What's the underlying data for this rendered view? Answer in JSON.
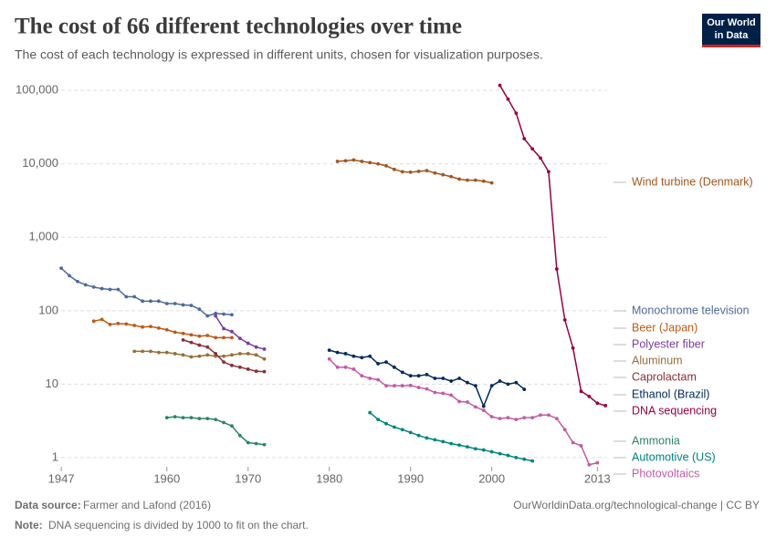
{
  "chart_data": {
    "type": "line",
    "title": "The cost of 66 different technologies over time",
    "subtitle": "The cost of each technology is expressed in different units, chosen for visualization purposes.",
    "logo": [
      "Our World",
      "in Data"
    ],
    "source_label": "Data source:",
    "source": "Farmer and Lafond (2016)",
    "url": "OurWorldinData.org/technological-change | CC BY",
    "note_label": "Note:",
    "note": "DNA sequencing is divided by 1000 to fit on the chart.",
    "log_scale": true,
    "grid": true,
    "xlim": [
      1946.2,
      2014.2
    ],
    "xticks": [
      1947,
      1960,
      1970,
      1980,
      1990,
      2000,
      2013
    ],
    "ylim": [
      0.75,
      130000
    ],
    "yticks": [
      1,
      10,
      100,
      {
        "value": 1000,
        "label": "1,000"
      },
      {
        "value": 10000,
        "label": "10,000"
      },
      {
        "value": 100000,
        "label": "100,000"
      }
    ],
    "series": [
      {
        "name": "Wind turbine (Denmark)",
        "color": "#A2561F",
        "x": [
          1981,
          1982,
          1983,
          1984,
          1985,
          1986,
          1987,
          1988,
          1989,
          1990,
          1991,
          1992,
          1993,
          1994,
          1995,
          1996,
          1997,
          1998,
          1999,
          2000
        ],
        "values": [
          10800,
          11000,
          11300,
          10800,
          10400,
          10000,
          9400,
          8400,
          7800,
          7700,
          7900,
          8100,
          7500,
          7100,
          6700,
          6200,
          6000,
          6000,
          5800,
          5500
        ]
      },
      {
        "name": "Monochrome television",
        "color": "#4C6A9C",
        "x": [
          1947,
          1948,
          1949,
          1950,
          1951,
          1952,
          1953,
          1954,
          1955,
          1956,
          1957,
          1958,
          1959,
          1960,
          1961,
          1962,
          1963,
          1964,
          1965,
          1966,
          1967,
          1968
        ],
        "values": [
          380,
          300,
          250,
          225,
          210,
          200,
          195,
          195,
          155,
          155,
          135,
          135,
          135,
          125,
          125,
          120,
          118,
          105,
          85,
          92,
          90,
          88
        ]
      },
      {
        "name": "Beer (Japan)",
        "color": "#BE5915",
        "x": [
          1951,
          1952,
          1953,
          1954,
          1955,
          1956,
          1957,
          1958,
          1959,
          1960,
          1961,
          1962,
          1963,
          1964,
          1965,
          1966,
          1967,
          1968
        ],
        "values": [
          72,
          76,
          65,
          67,
          66,
          63,
          60,
          61,
          58,
          55,
          51,
          49,
          47,
          45,
          46,
          43,
          43,
          43
        ]
      },
      {
        "name": "Polyester fiber",
        "color": "#7B3C9E",
        "x": [
          1966,
          1967,
          1968,
          1969,
          1970,
          1971,
          1972
        ],
        "values": [
          85,
          57,
          52,
          42,
          36,
          32,
          30
        ]
      },
      {
        "name": "Aluminum",
        "color": "#996D39",
        "x": [
          1956,
          1957,
          1958,
          1959,
          1960,
          1961,
          1962,
          1963,
          1964,
          1965,
          1966,
          1967,
          1968,
          1969,
          1970,
          1971,
          1972
        ],
        "values": [
          28,
          28,
          28,
          27,
          27,
          26,
          25,
          23.5,
          24,
          25,
          24,
          24,
          25,
          26,
          26,
          25,
          22
        ]
      },
      {
        "name": "Caprolactam",
        "color": "#883039",
        "x": [
          1962,
          1963,
          1964,
          1965,
          1966,
          1967,
          1968,
          1969,
          1970,
          1971,
          1972
        ],
        "values": [
          40,
          37,
          34,
          32,
          26,
          20,
          18,
          17,
          16,
          15,
          14.8
        ]
      },
      {
        "name": "Ethanol (Brazil)",
        "color": "#00295B",
        "x": [
          1980,
          1981,
          1982,
          1983,
          1984,
          1985,
          1986,
          1987,
          1988,
          1989,
          1990,
          1991,
          1992,
          1993,
          1994,
          1995,
          1996,
          1997,
          1998,
          1999,
          2000,
          2001,
          2002,
          2003,
          2004
        ],
        "values": [
          29,
          27,
          26,
          24,
          23,
          24,
          19,
          20,
          17,
          14.5,
          13,
          13,
          13.5,
          12,
          12,
          11,
          12,
          10.5,
          9.5,
          5,
          9.5,
          11,
          10,
          10.5,
          8.5
        ]
      },
      {
        "name": "DNA sequencing",
        "color": "#970046",
        "x": [
          2001,
          2002,
          2003,
          2004,
          2005,
          2006,
          2007,
          2008,
          2009,
          2010,
          2011,
          2012,
          2013,
          2014
        ],
        "values": [
          117000,
          76000,
          49000,
          22000,
          16000,
          12000,
          7800,
          370,
          75,
          31,
          8,
          6.8,
          5.5,
          5.1
        ]
      },
      {
        "name": "Ammonia",
        "color": "#2C8465",
        "x": [
          1960,
          1961,
          1962,
          1963,
          1964,
          1965,
          1966,
          1967,
          1968,
          1969,
          1970,
          1971,
          1972
        ],
        "values": [
          3.5,
          3.6,
          3.5,
          3.5,
          3.4,
          3.4,
          3.3,
          3.0,
          2.7,
          2.0,
          1.6,
          1.55,
          1.5
        ]
      },
      {
        "name": "Automotive (US)",
        "color": "#00847E",
        "x": [
          1985,
          1986,
          1987,
          1988,
          1989,
          1990,
          1991,
          1992,
          1993,
          1994,
          1995,
          1996,
          1997,
          1998,
          1999,
          2000,
          2001,
          2002,
          2003,
          2004,
          2005
        ],
        "values": [
          4.1,
          3.3,
          2.9,
          2.6,
          2.4,
          2.2,
          2.0,
          1.85,
          1.75,
          1.65,
          1.55,
          1.48,
          1.4,
          1.32,
          1.27,
          1.2,
          1.13,
          1.07,
          1.0,
          0.95,
          0.9
        ]
      },
      {
        "name": "Photovoltaics",
        "color": "#C15BA5",
        "x": [
          1980,
          1981,
          1982,
          1983,
          1984,
          1985,
          1986,
          1987,
          1988,
          1989,
          1990,
          1991,
          1992,
          1993,
          1994,
          1995,
          1996,
          1997,
          1998,
          1999,
          2000,
          2001,
          2002,
          2003,
          2004,
          2005,
          2006,
          2007,
          2008,
          2009,
          2010,
          2011,
          2012,
          2013
        ],
        "values": [
          22,
          17,
          17,
          16,
          13,
          12,
          11.5,
          9.5,
          9.5,
          9.5,
          9.6,
          9,
          8.6,
          7.7,
          7.5,
          7.1,
          5.8,
          5.7,
          4.9,
          4.4,
          3.6,
          3.4,
          3.5,
          3.3,
          3.5,
          3.5,
          3.8,
          3.8,
          3.4,
          2.4,
          1.6,
          1.45,
          0.8,
          0.85
        ]
      }
    ]
  }
}
